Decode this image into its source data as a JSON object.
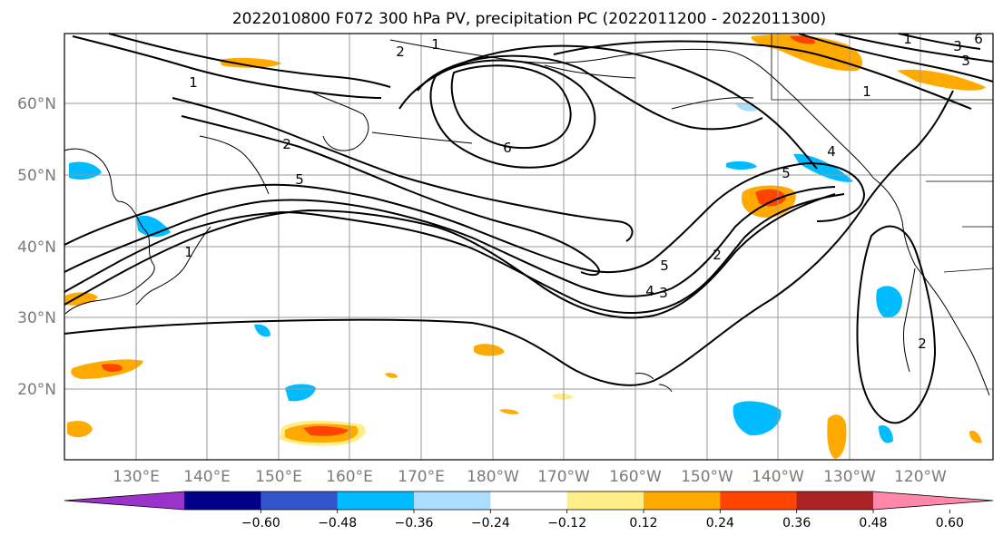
{
  "title": "2022010800 F072 300 hPa PV, precipitation PC (2022011200 - 2022011300)",
  "map": {
    "lat_labels": [
      "60°N",
      "50°N",
      "40°N",
      "30°N",
      "20°N"
    ],
    "lon_labels": [
      "130°E",
      "140°E",
      "150°E",
      "160°E",
      "170°E",
      "180°W",
      "170°W",
      "160°W",
      "150°W",
      "140°W",
      "130°W",
      "120°W"
    ],
    "contour_labels": [
      "1",
      "1",
      "2",
      "2",
      "5",
      "6",
      "1",
      "5",
      "5",
      "2",
      "4",
      "3",
      "4",
      "2",
      "1",
      "1",
      "3",
      "3",
      "6"
    ]
  },
  "colorbar": {
    "colors": [
      "#9933cc",
      "#000088",
      "#3355cc",
      "#00bbff",
      "#aaddff",
      "#ffffff",
      "#ffee88",
      "#ffaa00",
      "#ff4400",
      "#aa2222",
      "#ff88aa"
    ],
    "tick_labels": [
      "−0.60",
      "−0.48",
      "−0.36",
      "−0.24",
      "−0.12",
      "0.12",
      "0.24",
      "0.36",
      "0.48",
      "0.60"
    ]
  }
}
